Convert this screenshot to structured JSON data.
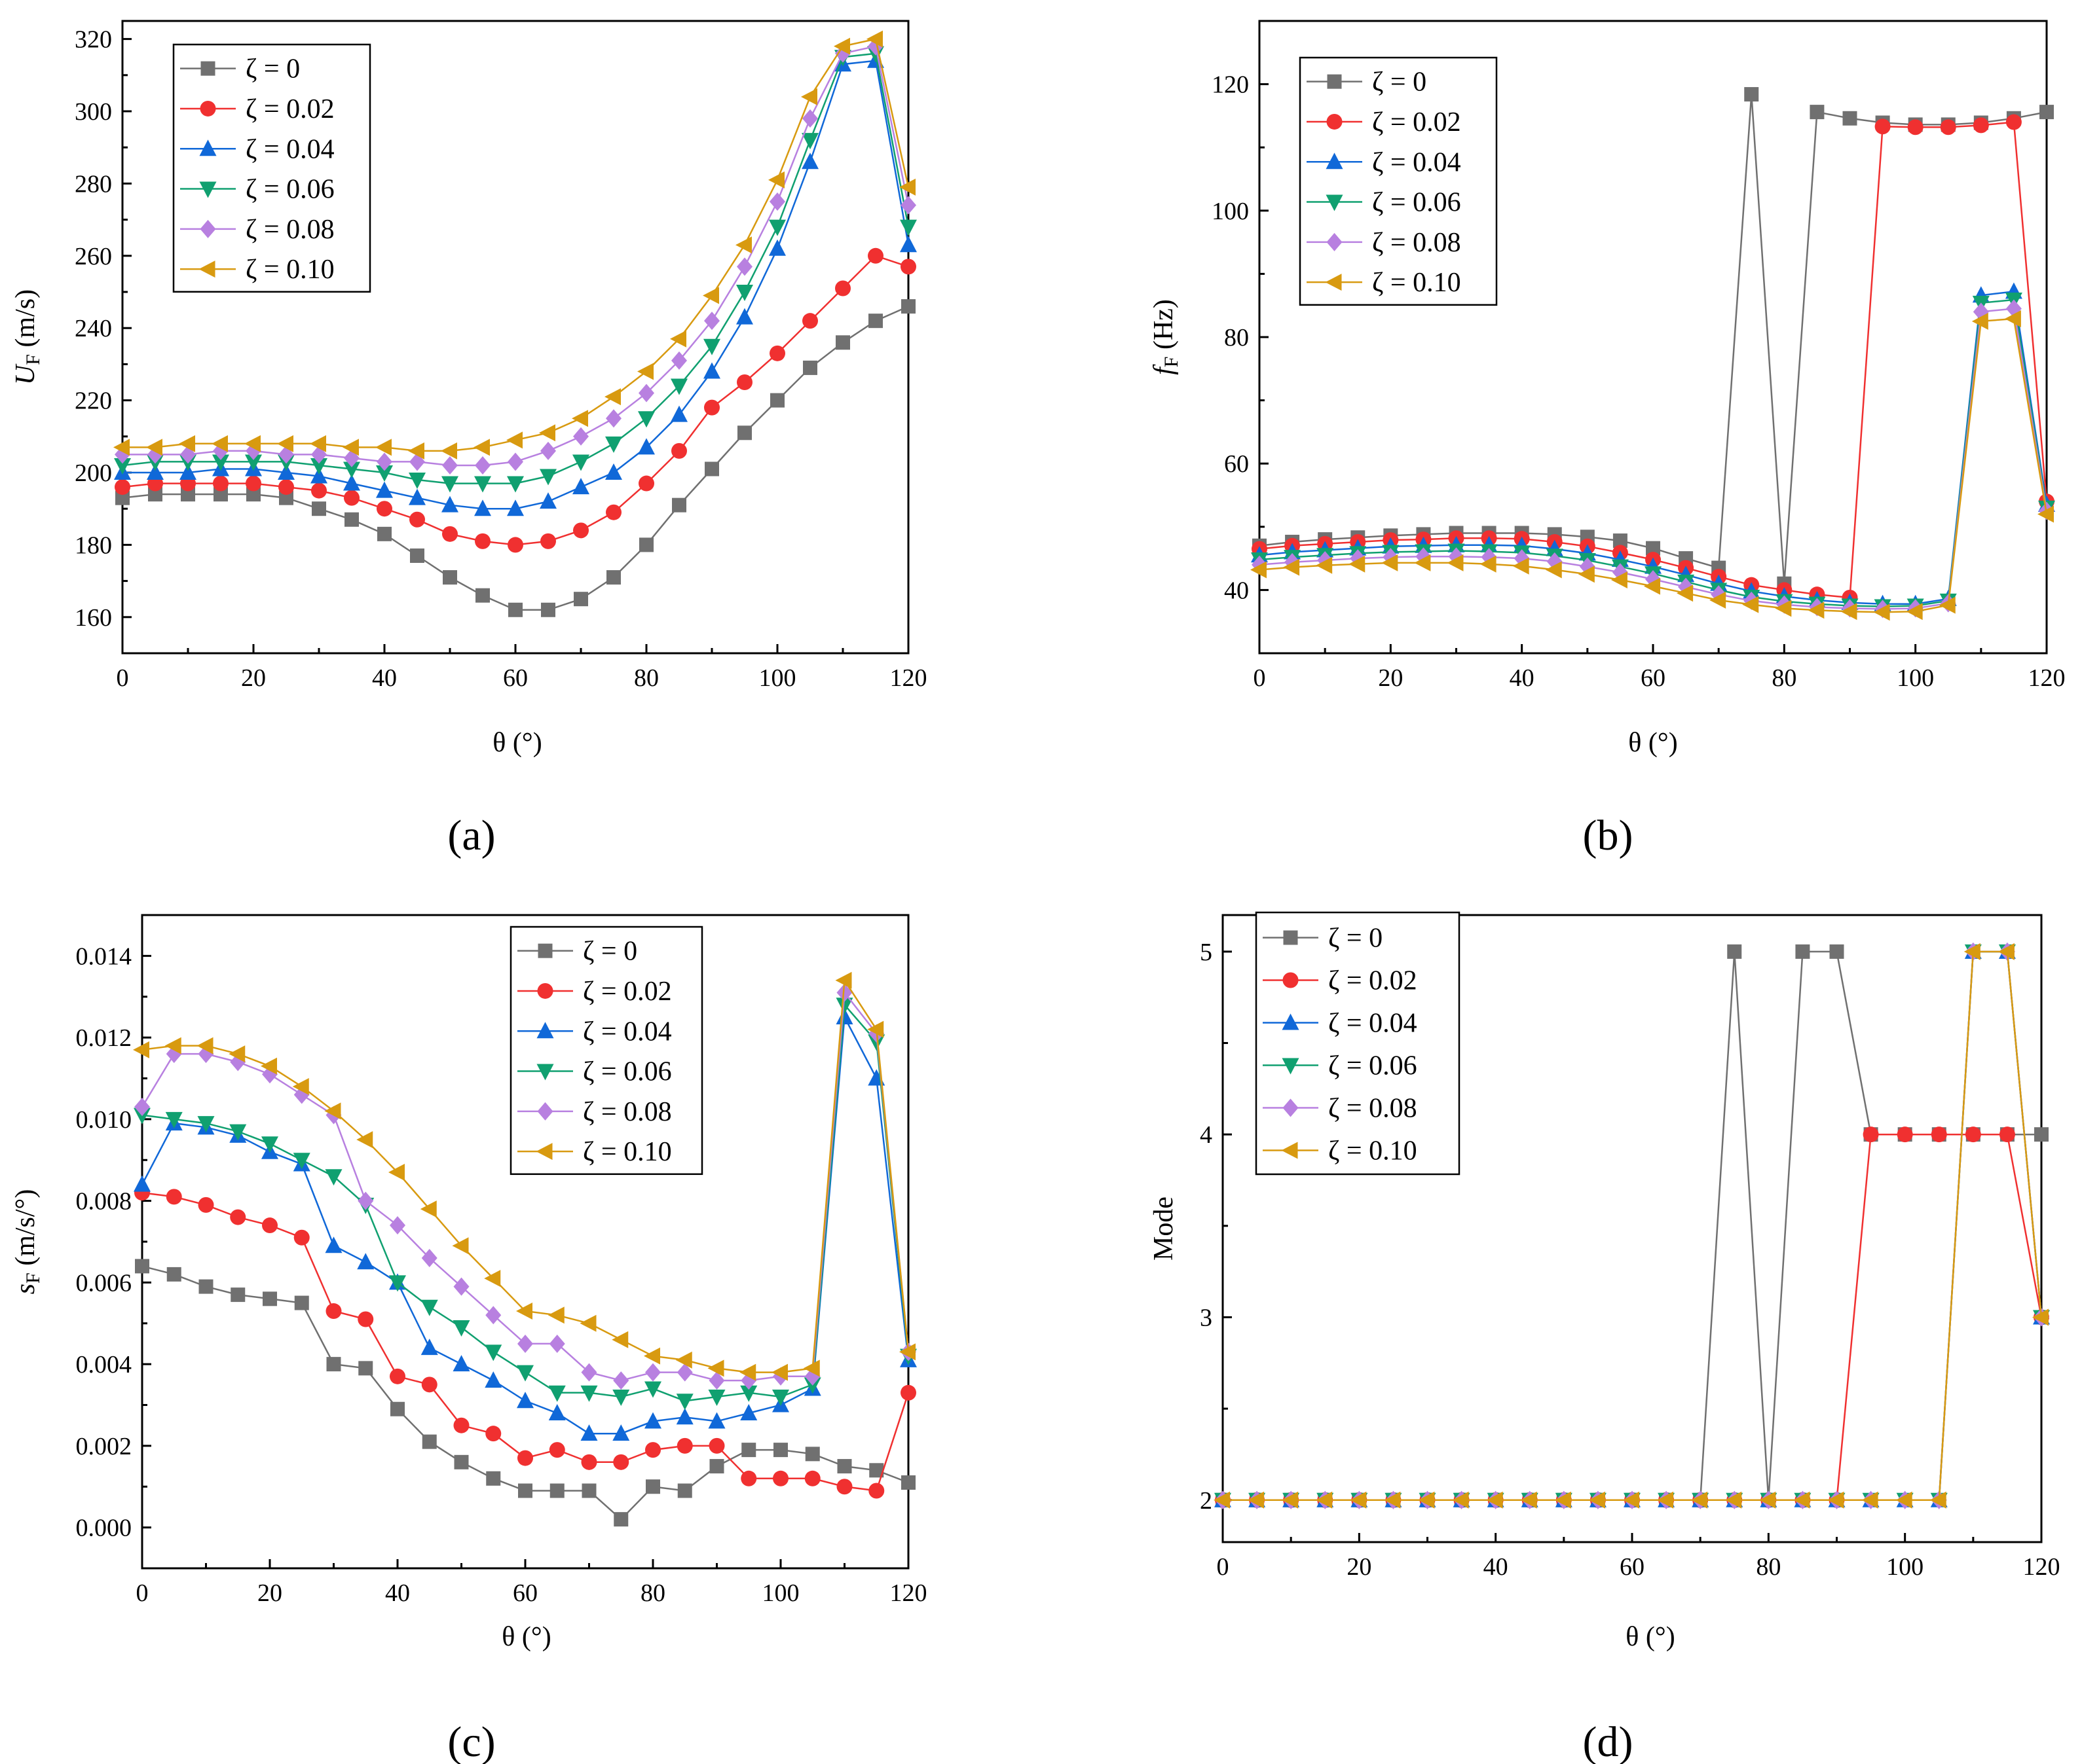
{
  "colors": {
    "zeta_0": "#707070",
    "zeta_002": "#f03030",
    "zeta_004": "#1068d8",
    "zeta_006": "#10a070",
    "zeta_008": "#b880e0",
    "zeta_010": "#d89a10"
  },
  "chart_data": [
    {
      "id": "a",
      "type": "line",
      "panel_label": "(a)",
      "xlabel": "θ (°)",
      "ylabel_main": "U",
      "ylabel_sub": "F",
      "ylabel_unit": " (m/s)",
      "xlim": [
        0,
        120
      ],
      "ylim": [
        150,
        325
      ],
      "xticks": [
        0,
        20,
        40,
        60,
        80,
        100,
        120
      ],
      "yticks": [
        160,
        180,
        200,
        220,
        240,
        260,
        280,
        300,
        320
      ],
      "ytick_decimals": 0,
      "legend_position": "top-left",
      "x": [
        0,
        5,
        10,
        15,
        20,
        25,
        30,
        35,
        40,
        45,
        50,
        55,
        60,
        65,
        70,
        75,
        80,
        85,
        90,
        95,
        100,
        105,
        110,
        115,
        120
      ],
      "series": [
        {
          "name": "ζ = 0",
          "marker": "square",
          "color_key": "zeta_0",
          "values": [
            193,
            194,
            194,
            194,
            194,
            193,
            190,
            187,
            183,
            177,
            171,
            166,
            162,
            162,
            165,
            171,
            180,
            191,
            201,
            211,
            220,
            229,
            236,
            242,
            246
          ]
        },
        {
          "name": "ζ = 0.02",
          "marker": "circle",
          "color_key": "zeta_002",
          "values": [
            196,
            197,
            197,
            197,
            197,
            196,
            195,
            193,
            190,
            187,
            183,
            181,
            180,
            181,
            184,
            189,
            197,
            206,
            218,
            225,
            233,
            242,
            251,
            260,
            257
          ]
        },
        {
          "name": "ζ = 0.04",
          "marker": "triangle-up",
          "color_key": "zeta_004",
          "values": [
            200,
            200,
            200,
            201,
            201,
            200,
            199,
            197,
            195,
            193,
            191,
            190,
            190,
            192,
            196,
            200,
            207,
            216,
            228,
            243,
            262,
            286,
            313,
            314,
            263
          ]
        },
        {
          "name": "ζ = 0.06",
          "marker": "triangle-down",
          "color_key": "zeta_006",
          "values": [
            202,
            203,
            203,
            203,
            203,
            203,
            202,
            201,
            200,
            198,
            197,
            197,
            197,
            199,
            203,
            208,
            215,
            224,
            235,
            250,
            268,
            292,
            315,
            316,
            268
          ]
        },
        {
          "name": "ζ = 0.08",
          "marker": "diamond",
          "color_key": "zeta_008",
          "values": [
            205,
            205,
            205,
            206,
            206,
            205,
            205,
            204,
            203,
            203,
            202,
            202,
            203,
            206,
            210,
            215,
            222,
            231,
            242,
            257,
            275,
            298,
            316,
            318,
            274
          ]
        },
        {
          "name": "ζ = 0.10",
          "marker": "triangle-left",
          "color_key": "zeta_010",
          "values": [
            207,
            207,
            208,
            208,
            208,
            208,
            208,
            207,
            207,
            206,
            206,
            207,
            209,
            211,
            215,
            221,
            228,
            237,
            249,
            263,
            281,
            304,
            318,
            320,
            279
          ]
        }
      ]
    },
    {
      "id": "b",
      "type": "line",
      "panel_label": "(b)",
      "xlabel": "θ (°)",
      "ylabel_main": "f",
      "ylabel_sub": "F",
      "ylabel_unit": " (Hz)",
      "xlim": [
        0,
        120
      ],
      "ylim": [
        30,
        130
      ],
      "xticks": [
        0,
        20,
        40,
        60,
        80,
        100,
        120
      ],
      "yticks": [
        40,
        60,
        80,
        100,
        120
      ],
      "ytick_decimals": 0,
      "legend_position": "top-left",
      "x": [
        0,
        5,
        10,
        15,
        20,
        25,
        30,
        35,
        40,
        45,
        50,
        55,
        60,
        65,
        70,
        75,
        80,
        85,
        90,
        95,
        100,
        105,
        110,
        115,
        120
      ],
      "series": [
        {
          "name": "ζ = 0",
          "marker": "square",
          "color_key": "zeta_0",
          "values": [
            47,
            47.6,
            48,
            48.3,
            48.6,
            48.8,
            49,
            49,
            49,
            48.8,
            48.4,
            47.8,
            46.6,
            45,
            43.5,
            118.4,
            41,
            115.6,
            114.6,
            113.9,
            113.6,
            113.6,
            113.9,
            114.6,
            115.6
          ]
        },
        {
          "name": "ζ = 0.02",
          "marker": "circle",
          "color_key": "zeta_002",
          "values": [
            46.5,
            47,
            47.3,
            47.6,
            47.9,
            48,
            48.2,
            48.2,
            48.1,
            47.6,
            46.9,
            45.9,
            44.8,
            43.5,
            42.1,
            40.8,
            40,
            39.3,
            38.8,
            113.3,
            113.2,
            113.2,
            113.5,
            114,
            54
          ]
        },
        {
          "name": "ζ = 0.04",
          "marker": "triangle-up",
          "color_key": "zeta_004",
          "values": [
            45.5,
            46,
            46.3,
            46.6,
            46.9,
            47,
            47.1,
            47.1,
            47,
            46.5,
            45.8,
            44.8,
            43.7,
            42.4,
            41,
            39.8,
            39,
            38.4,
            38,
            37.8,
            37.8,
            38.6,
            86.6,
            87.2,
            53.5
          ]
        },
        {
          "name": "ζ = 0.06",
          "marker": "triangle-down",
          "color_key": "zeta_006",
          "values": [
            44.8,
            45.2,
            45.5,
            45.8,
            46,
            46.1,
            46.2,
            46.1,
            45.9,
            45.4,
            44.7,
            43.7,
            42.6,
            41.3,
            40,
            38.9,
            38.2,
            37.8,
            37.5,
            37.4,
            37.5,
            38.3,
            85.4,
            85.9,
            53
          ]
        },
        {
          "name": "ζ = 0.08",
          "marker": "diamond",
          "color_key": "zeta_008",
          "values": [
            44,
            44.4,
            44.7,
            45,
            45.2,
            45.3,
            45.3,
            45.2,
            45,
            44.5,
            43.7,
            42.8,
            41.7,
            40.5,
            39.3,
            38.3,
            37.7,
            37.3,
            37.1,
            37,
            37.1,
            37.9,
            84,
            84.5,
            52.5
          ]
        },
        {
          "name": "ζ = 0.10",
          "marker": "triangle-left",
          "color_key": "zeta_010",
          "values": [
            43.2,
            43.6,
            43.9,
            44.1,
            44.3,
            44.3,
            44.3,
            44.1,
            43.8,
            43.2,
            42.5,
            41.6,
            40.6,
            39.5,
            38.4,
            37.7,
            37.1,
            36.8,
            36.6,
            36.5,
            36.6,
            37.6,
            82.5,
            82.9,
            52
          ]
        }
      ]
    },
    {
      "id": "c",
      "type": "line",
      "panel_label": "(c)",
      "xlabel": "θ (°)",
      "ylabel_main": "s",
      "ylabel_sub": "F",
      "ylabel_unit": " (m/s/°)",
      "xlim": [
        0,
        120
      ],
      "ylim": [
        -0.001,
        0.015
      ],
      "xticks": [
        0,
        20,
        40,
        60,
        80,
        100,
        120
      ],
      "yticks": [
        0,
        0.002,
        0.004,
        0.006,
        0.008,
        0.01,
        0.012,
        0.014
      ],
      "ytick_decimals": 3,
      "legend_position": "top-center",
      "x": [
        0,
        5,
        10,
        15,
        20,
        25,
        30,
        35,
        40,
        45,
        50,
        55,
        60,
        65,
        70,
        75,
        80,
        85,
        90,
        95,
        100,
        105,
        110,
        115,
        120
      ],
      "series": [
        {
          "name": "ζ = 0",
          "marker": "square",
          "color_key": "zeta_0",
          "values": [
            0.0064,
            0.0062,
            0.0059,
            0.0057,
            0.0056,
            0.0055,
            0.004,
            0.0039,
            0.0029,
            0.0021,
            0.0016,
            0.0012,
            0.0009,
            0.0009,
            0.0009,
            0.0002,
            0.001,
            0.0009,
            0.0015,
            0.0019,
            0.0019,
            0.0018,
            0.0015,
            0.0014,
            0.0011
          ]
        },
        {
          "name": "ζ = 0.02",
          "marker": "circle",
          "color_key": "zeta_002",
          "values": [
            0.0082,
            0.0081,
            0.0079,
            0.0076,
            0.0074,
            0.0071,
            0.0053,
            0.0051,
            0.0037,
            0.0035,
            0.0025,
            0.0023,
            0.0017,
            0.0019,
            0.0016,
            0.0016,
            0.0019,
            0.002,
            0.002,
            0.0012,
            0.0012,
            0.0012,
            0.001,
            0.0009,
            0.0033
          ]
        },
        {
          "name": "ζ = 0.04",
          "marker": "triangle-up",
          "color_key": "zeta_004",
          "values": [
            0.0084,
            0.0099,
            0.0098,
            0.0096,
            0.0092,
            0.0089,
            0.0069,
            0.0065,
            0.006,
            0.0044,
            0.004,
            0.0036,
            0.0031,
            0.0028,
            0.0023,
            0.0023,
            0.0026,
            0.0027,
            0.0026,
            0.0028,
            0.003,
            0.0034,
            0.0125,
            0.011,
            0.0041
          ]
        },
        {
          "name": "ζ = 0.06",
          "marker": "triangle-down",
          "color_key": "zeta_006",
          "values": [
            0.0101,
            0.01,
            0.0099,
            0.0097,
            0.0094,
            0.009,
            0.0086,
            0.0079,
            0.006,
            0.0054,
            0.0049,
            0.0043,
            0.0038,
            0.0033,
            0.0033,
            0.0032,
            0.0034,
            0.0031,
            0.0032,
            0.0033,
            0.0032,
            0.0035,
            0.0128,
            0.0119,
            0.0042
          ]
        },
        {
          "name": "ζ = 0.08",
          "marker": "diamond",
          "color_key": "zeta_008",
          "values": [
            0.0103,
            0.0116,
            0.0116,
            0.0114,
            0.0111,
            0.0106,
            0.0101,
            0.008,
            0.0074,
            0.0066,
            0.0059,
            0.0052,
            0.0045,
            0.0045,
            0.0038,
            0.0036,
            0.0038,
            0.0038,
            0.0036,
            0.0036,
            0.0037,
            0.0037,
            0.0131,
            0.0121,
            0.0043
          ]
        },
        {
          "name": "ζ = 0.10",
          "marker": "triangle-left",
          "color_key": "zeta_010",
          "values": [
            0.0117,
            0.0118,
            0.0118,
            0.0116,
            0.0113,
            0.0108,
            0.0102,
            0.0095,
            0.0087,
            0.0078,
            0.0069,
            0.0061,
            0.0053,
            0.0052,
            0.005,
            0.0046,
            0.0042,
            0.0041,
            0.0039,
            0.0038,
            0.0038,
            0.0039,
            0.0134,
            0.0122,
            0.0043
          ]
        }
      ]
    },
    {
      "id": "d",
      "type": "line",
      "panel_label": "(d)",
      "xlabel": "θ (°)",
      "ylabel_main": "Mode",
      "ylabel_sub": "",
      "ylabel_unit": "",
      "xlim": [
        0,
        120
      ],
      "ylim": [
        1.77,
        5.2
      ],
      "xticks": [
        0,
        20,
        40,
        60,
        80,
        100,
        120
      ],
      "yticks": [
        2,
        3,
        4,
        5
      ],
      "ytick_decimals": 0,
      "legend_position": "top-left",
      "x": [
        0,
        5,
        10,
        15,
        20,
        25,
        30,
        35,
        40,
        45,
        50,
        55,
        60,
        65,
        70,
        75,
        80,
        85,
        90,
        95,
        100,
        105,
        110,
        115,
        120
      ],
      "series": [
        {
          "name": "ζ = 0",
          "marker": "square",
          "color_key": "zeta_0",
          "values": [
            2,
            2,
            2,
            2,
            2,
            2,
            2,
            2,
            2,
            2,
            2,
            2,
            2,
            2,
            2,
            5,
            2,
            5,
            5,
            4,
            4,
            4,
            4,
            4,
            4
          ]
        },
        {
          "name": "ζ = 0.02",
          "marker": "circle",
          "color_key": "zeta_002",
          "values": [
            2,
            2,
            2,
            2,
            2,
            2,
            2,
            2,
            2,
            2,
            2,
            2,
            2,
            2,
            2,
            2,
            2,
            2,
            2,
            4,
            4,
            4,
            4,
            4,
            3
          ]
        },
        {
          "name": "ζ = 0.04",
          "marker": "triangle-up",
          "color_key": "zeta_004",
          "values": [
            2,
            2,
            2,
            2,
            2,
            2,
            2,
            2,
            2,
            2,
            2,
            2,
            2,
            2,
            2,
            2,
            2,
            2,
            2,
            2,
            2,
            2,
            5,
            5,
            3
          ]
        },
        {
          "name": "ζ = 0.06",
          "marker": "triangle-down",
          "color_key": "zeta_006",
          "values": [
            2,
            2,
            2,
            2,
            2,
            2,
            2,
            2,
            2,
            2,
            2,
            2,
            2,
            2,
            2,
            2,
            2,
            2,
            2,
            2,
            2,
            2,
            5,
            5,
            3
          ]
        },
        {
          "name": "ζ = 0.08",
          "marker": "diamond",
          "color_key": "zeta_008",
          "values": [
            2,
            2,
            2,
            2,
            2,
            2,
            2,
            2,
            2,
            2,
            2,
            2,
            2,
            2,
            2,
            2,
            2,
            2,
            2,
            2,
            2,
            2,
            5,
            5,
            3
          ]
        },
        {
          "name": "ζ = 0.10",
          "marker": "triangle-left",
          "color_key": "zeta_010",
          "values": [
            2,
            2,
            2,
            2,
            2,
            2,
            2,
            2,
            2,
            2,
            2,
            2,
            2,
            2,
            2,
            2,
            2,
            2,
            2,
            2,
            2,
            2,
            5,
            5,
            3
          ]
        }
      ]
    }
  ]
}
